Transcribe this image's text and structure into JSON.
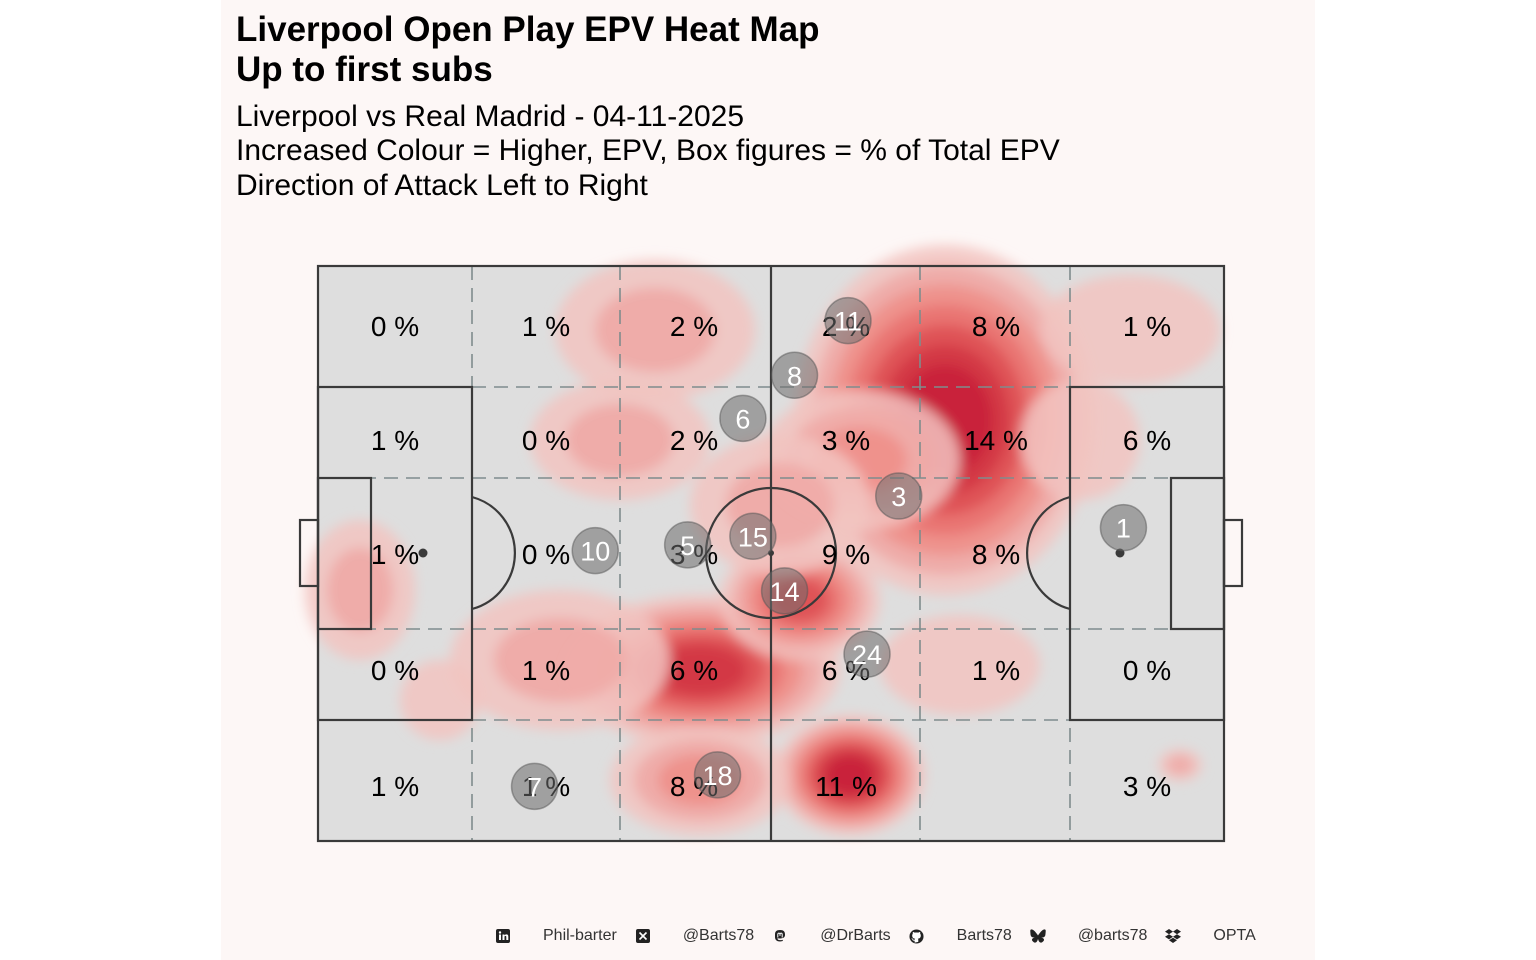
{
  "title_line1": "Liverpool Open Play EPV Heat Map",
  "title_line2": "Up to first subs",
  "subtitle_line1": "Liverpool vs Real Madrid - 04-11-2025",
  "subtitle_line2": "Increased Colour = Higher, EPV, Box figures = % of Total EPV",
  "subtitle_line3": "Direction of Attack Left to Right",
  "colors": {
    "panel_background": "#fdf7f6",
    "pitch_fill": "#dedede",
    "pitch_lines": "#3a3a3a",
    "zone_lines": "#7f8c8d",
    "heat_low": "#f2c4c1",
    "heat_high": "#c81e3a",
    "player_marker": "#6e6e6e"
  },
  "chart_data": {
    "type": "heatmap",
    "direction_of_attack": "left to right",
    "columns": 6,
    "rows": 5,
    "zone_percentages": [
      [
        "0 %",
        "1 %",
        "2 %",
        "2 %",
        "8 %",
        "1 %"
      ],
      [
        "1 %",
        "0 %",
        "2 %",
        "3 %",
        "14 %",
        "6 %"
      ],
      [
        "1 %",
        "0 %",
        "3 %",
        "9 %",
        "8 %",
        ""
      ],
      [
        "0 %",
        "1 %",
        "6 %",
        "6 %",
        "1 %",
        "0 %"
      ],
      [
        "1 %",
        "1 %",
        "8 %",
        "11 %",
        "",
        "3 %"
      ]
    ],
    "players": [
      {
        "number": "11",
        "x": 58.5,
        "y": 9.5
      },
      {
        "number": "8",
        "x": 52.6,
        "y": 19.0
      },
      {
        "number": "6",
        "x": 46.9,
        "y": 26.5
      },
      {
        "number": "3",
        "x": 64.1,
        "y": 40.0
      },
      {
        "number": "1",
        "x": 88.9,
        "y": 45.5
      },
      {
        "number": "15",
        "x": 48.0,
        "y": 47.0
      },
      {
        "number": "10",
        "x": 30.6,
        "y": 49.5
      },
      {
        "number": "5",
        "x": 40.8,
        "y": 48.5
      },
      {
        "number": "14",
        "x": 51.5,
        "y": 56.5
      },
      {
        "number": "24",
        "x": 60.6,
        "y": 67.5
      },
      {
        "number": "18",
        "x": 44.1,
        "y": 88.5
      },
      {
        "number": "7",
        "x": 23.9,
        "y": 90.5
      }
    ],
    "heat_hotspots": [
      {
        "x": 68,
        "y": 28,
        "intensity": "high"
      },
      {
        "x": 58,
        "y": 88,
        "intensity": "high"
      },
      {
        "x": 44,
        "y": 70,
        "intensity": "high"
      },
      {
        "x": 55,
        "y": 59,
        "intensity": "medium"
      },
      {
        "x": 35,
        "y": 10,
        "intensity": "low"
      }
    ]
  },
  "footer": [
    {
      "icon": "linkedin-icon",
      "text": "Phil-barter"
    },
    {
      "icon": "x-twitter-icon",
      "text": "@Barts78"
    },
    {
      "icon": "mastodon-icon",
      "text": "@DrBarts"
    },
    {
      "icon": "github-icon",
      "text": "Barts78"
    },
    {
      "icon": "bluesky-icon",
      "text": "@barts78"
    },
    {
      "icon": "dropbox-icon",
      "text": "OPTA"
    }
  ]
}
